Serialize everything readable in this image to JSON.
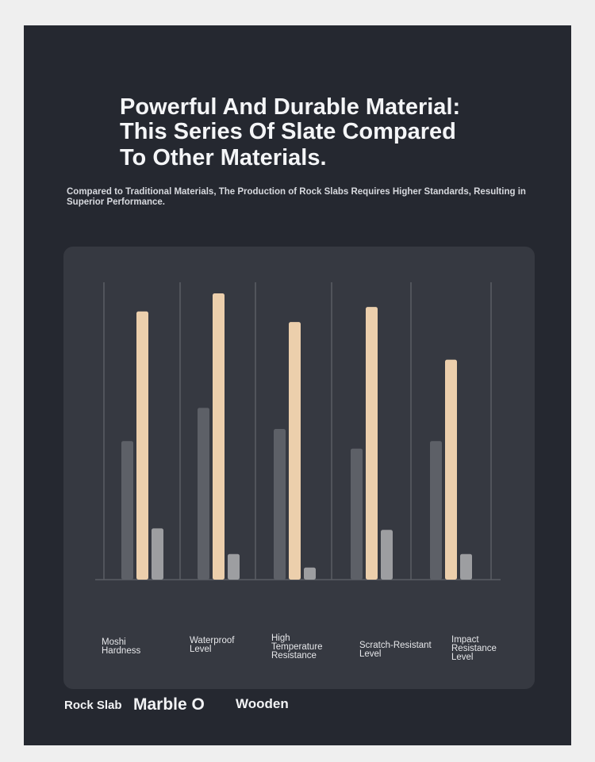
{
  "title": {
    "line1": "Powerful And Durable Material:",
    "line2": "This Series Of Slate Compared",
    "line3": "To Other Materials."
  },
  "subtitle": "Compared to Traditional Materials, The Production of Rock Slabs Requires Higher Standards, Resulting in Superior Performance.",
  "chart_data": {
    "type": "bar",
    "categories": [
      "Moshi\nHardness",
      "Waterproof\nLevel",
      "High\nTemperature\nResistance",
      "Scratch-Resistant\nLevel",
      "Impact\nResistance\nLevel"
    ],
    "series": [
      {
        "name": "Rock Slab",
        "color": "#5d6067",
        "values": [
          46,
          57,
          50,
          43.5,
          46
        ]
      },
      {
        "name": "Marble O",
        "color": "#eccfac",
        "values": [
          89,
          95,
          85.5,
          90.5,
          73
        ]
      },
      {
        "name": "Wooden",
        "color": "#9d9ea1",
        "values": [
          17,
          8.5,
          4,
          16.5,
          8.5
        ]
      }
    ],
    "ylim": [
      0,
      100
    ],
    "grid": true,
    "legend_position": "bottom-left",
    "xlabel": "",
    "ylabel": ""
  },
  "colors": {
    "background": "#252830",
    "card": "#363941",
    "gridline": "#5a5d64"
  }
}
